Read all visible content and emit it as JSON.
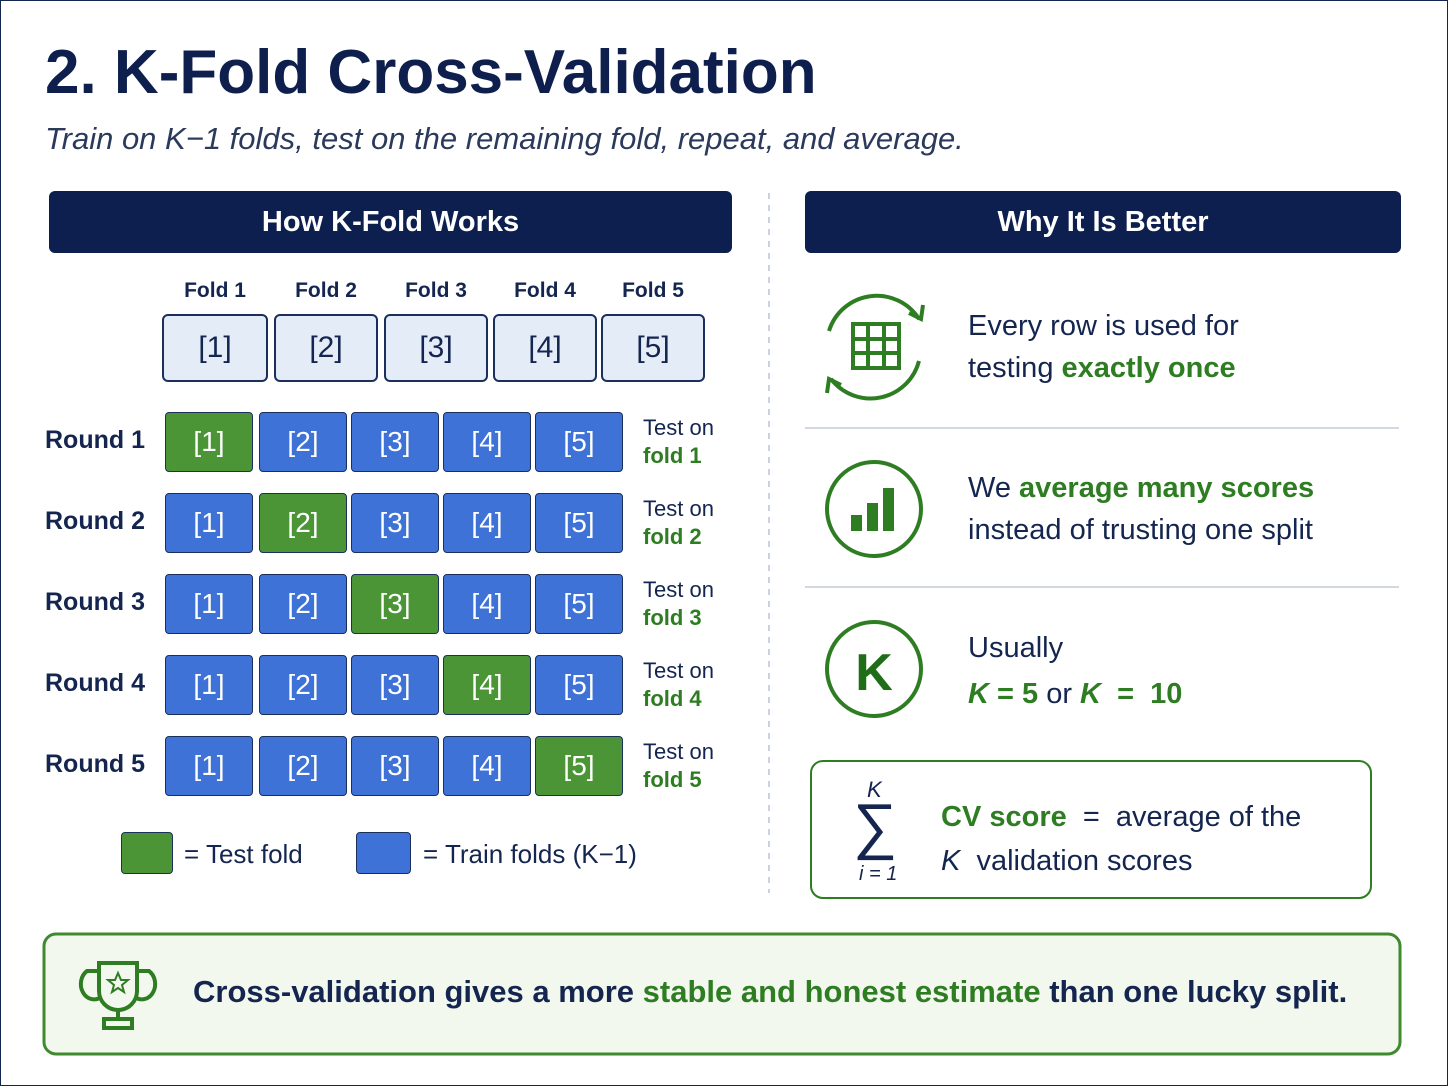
{
  "header": {
    "title": "2. K-Fold Cross-Validation",
    "subtitle": "Train on K−1 folds, test on the remaining fold, repeat, and average."
  },
  "how": {
    "heading": "How K-Fold Works",
    "folds": [
      {
        "label": "Fold 1",
        "chip": "[1]"
      },
      {
        "label": "Fold 2",
        "chip": "[2]"
      },
      {
        "label": "Fold 3",
        "chip": "[3]"
      },
      {
        "label": "Fold 4",
        "chip": "[4]"
      },
      {
        "label": "Fold 5",
        "chip": "[5]"
      }
    ],
    "rounds": [
      {
        "label": "Round 1",
        "cells": [
          {
            "text": "[1]",
            "role": "test"
          },
          {
            "text": "[2]",
            "role": "train"
          },
          {
            "text": "[3]",
            "role": "train"
          },
          {
            "text": "[4]",
            "role": "train"
          },
          {
            "text": "[5]",
            "role": "train"
          }
        ],
        "note": [
          "Test on",
          "fold 1"
        ]
      },
      {
        "label": "Round 2",
        "cells": [
          {
            "text": "[1]",
            "role": "train"
          },
          {
            "text": "[2]",
            "role": "test"
          },
          {
            "text": "[3]",
            "role": "train"
          },
          {
            "text": "[4]",
            "role": "train"
          },
          {
            "text": "[5]",
            "role": "train"
          }
        ],
        "note": [
          "Test on",
          "fold 2"
        ]
      },
      {
        "label": "Round 3",
        "cells": [
          {
            "text": "[1]",
            "role": "train"
          },
          {
            "text": "[2]",
            "role": "train"
          },
          {
            "text": "[3]",
            "role": "test"
          },
          {
            "text": "[4]",
            "role": "train"
          },
          {
            "text": "[5]",
            "role": "train"
          }
        ],
        "note": [
          "Test on",
          "fold 3"
        ]
      },
      {
        "label": "Round 4",
        "cells": [
          {
            "text": "[1]",
            "role": "train"
          },
          {
            "text": "[2]",
            "role": "train"
          },
          {
            "text": "[3]",
            "role": "train"
          },
          {
            "text": "[4]",
            "role": "test"
          },
          {
            "text": "[5]",
            "role": "train"
          }
        ],
        "note": [
          "Test on",
          "fold 4"
        ]
      },
      {
        "label": "Round 5",
        "cells": [
          {
            "text": "[1]",
            "role": "train"
          },
          {
            "text": "[2]",
            "role": "train"
          },
          {
            "text": "[3]",
            "role": "train"
          },
          {
            "text": "[4]",
            "role": "train"
          },
          {
            "text": "[5]",
            "role": "test"
          }
        ],
        "note": [
          "Test on",
          "fold 5"
        ]
      }
    ],
    "legend": [
      {
        "role": "test",
        "text": "= Test fold"
      },
      {
        "role": "train",
        "text": "= Train folds (K−1)"
      }
    ],
    "colors": {
      "test": "#4b9537",
      "train": "#3f72d6"
    }
  },
  "why": {
    "heading": "Why It Is Better",
    "items": [
      {
        "lines": [
          [
            {
              "text": "Every row is used for",
              "style": "plain"
            }
          ],
          [
            {
              "text": "testing ",
              "style": "plain"
            },
            {
              "text": "exactly once",
              "style": "green"
            }
          ]
        ]
      },
      {
        "lines": [
          [
            {
              "text": "We ",
              "style": "plain"
            },
            {
              "text": "average many scores",
              "style": "green"
            }
          ],
          [
            {
              "text": "instead of trusting one split",
              "style": "plain"
            }
          ]
        ]
      },
      {
        "badge": "K",
        "lines": [
          [
            {
              "text": "Usually",
              "style": "plain"
            }
          ],
          [
            {
              "text": "K",
              "style": "green-italic"
            },
            {
              "text": " = 5 ",
              "style": "green"
            },
            {
              "text": "or",
              "style": "plain"
            },
            {
              "text": " K",
              "style": "green-italic"
            },
            {
              "text": "  =  10",
              "style": "green"
            }
          ]
        ]
      }
    ],
    "summary": {
      "sigma": "∑",
      "upper": "K",
      "lower": "i = 1",
      "lines": [
        [
          {
            "text": "CV score",
            "style": "green"
          },
          {
            "text": "  =  average of the",
            "style": "plain"
          }
        ],
        [
          {
            "text": "K",
            "style": "italic"
          },
          {
            "text": "  validation scores",
            "style": "plain"
          }
        ]
      ]
    }
  },
  "footer": [
    {
      "text": "Cross-validation gives a more ",
      "style": "plain"
    },
    {
      "text": "stable and honest estimate",
      "style": "green"
    },
    {
      "text": " than one lucky split.",
      "style": "plain"
    }
  ]
}
